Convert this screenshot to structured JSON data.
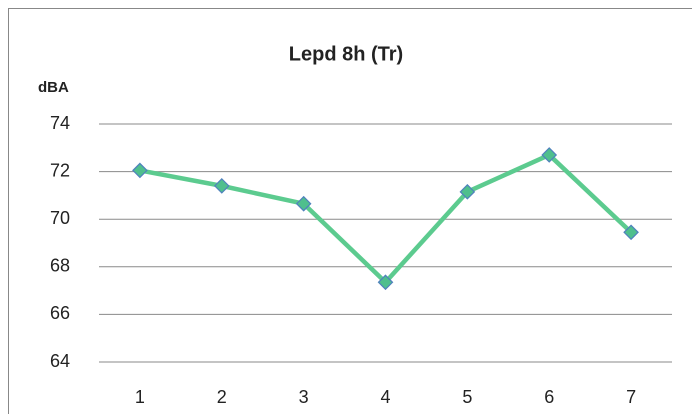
{
  "chart_data": {
    "type": "line",
    "title": "Lepd 8h (Tr)",
    "y_label": "dBA",
    "categories": [
      "1",
      "2",
      "3",
      "4",
      "5",
      "6",
      "7"
    ],
    "series": [
      {
        "name": "Lepd 8h (Tr)",
        "color": "#5ccb8f",
        "marker_color": "#4fbf8d",
        "marker_edge": "#4f81bd",
        "values": [
          72.05,
          71.4,
          70.65,
          67.35,
          71.15,
          72.7,
          69.45
        ]
      }
    ],
    "ylim": [
      64,
      74
    ],
    "yticks": [
      64,
      66,
      68,
      70,
      72,
      74
    ],
    "grid": true
  }
}
